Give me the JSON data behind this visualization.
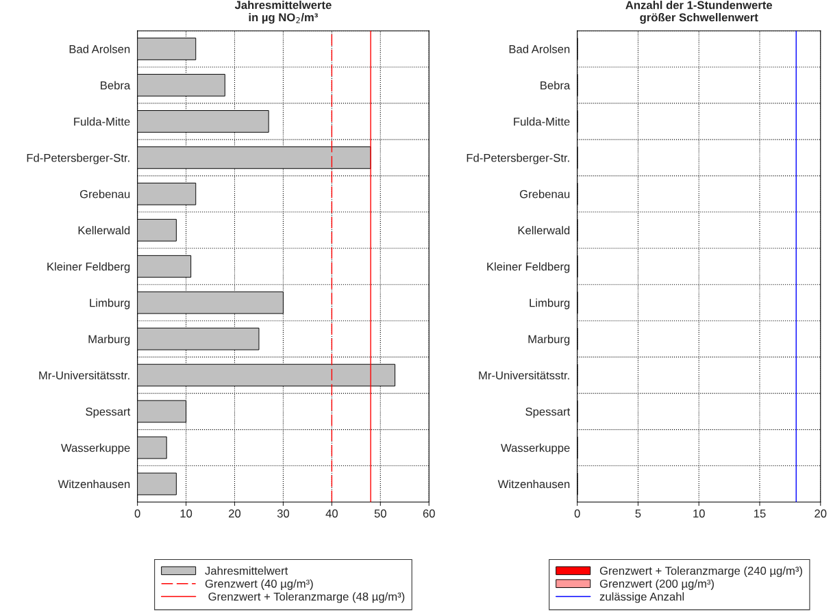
{
  "chart_data": [
    {
      "type": "bar",
      "orientation": "horizontal",
      "title": "Jahresmittelwerte\nin µg NO$_{2}$/m³",
      "categories": [
        "Bad Arolsen",
        "Bebra",
        "Fulda-Mitte",
        "Fd-Petersberger-Str.",
        "Grebenau",
        "Kellerwald",
        "Kleiner Feldberg",
        "Limburg",
        "Marburg",
        "Mr-Universitätsstr.",
        "Spessart",
        "Wasserkuppe",
        "Witzenhausen"
      ],
      "series": [
        {
          "name": "Jahresmittelwert",
          "color": "#c0c0c0",
          "values": [
            12,
            18,
            27,
            48,
            12,
            8,
            11,
            30,
            25,
            53,
            10,
            6,
            8
          ]
        }
      ],
      "ref_lines": [
        {
          "axis": "x",
          "value": 40,
          "label": "Grenzwert (40 µg/m³)",
          "color": "#ff0000",
          "line_style": "dashed"
        },
        {
          "axis": "x",
          "value": 48,
          "label": " Grenzwert + Toleranzmarge (48 µg/m³)",
          "color": "#ff0000",
          "line_style": "solid"
        }
      ],
      "xlim": [
        0,
        60
      ],
      "xticks": [
        0,
        10,
        20,
        30,
        40,
        50,
        60
      ],
      "grid": true,
      "legend": "bottom"
    },
    {
      "type": "bar",
      "orientation": "horizontal",
      "title": "Anzahl der 1-Stundenwerte\ngrößer Schwellenwert",
      "categories": [
        "Bad Arolsen",
        "Bebra",
        "Fulda-Mitte",
        "Fd-Petersberger-Str.",
        "Grebenau",
        "Kellerwald",
        "Kleiner Feldberg",
        "Limburg",
        "Marburg",
        "Mr-Universitätsstr.",
        "Spessart",
        "Wasserkuppe",
        "Witzenhausen"
      ],
      "series": [
        {
          "name": "Grenzwert + Toleranzmarge (240 µg/m³)",
          "color": "#ff0000",
          "values": [
            0,
            0,
            0,
            0,
            0,
            0,
            0,
            0,
            0,
            0,
            0,
            0,
            0
          ]
        },
        {
          "name": "Grenzwert (200 µg/m³)",
          "color": "#ff9999",
          "values": [
            0,
            0,
            0,
            0,
            0,
            0,
            0,
            0,
            0,
            0,
            0,
            0,
            0
          ]
        }
      ],
      "ref_lines": [
        {
          "axis": "x",
          "value": 18,
          "label": "zulässige Anzahl",
          "color": "#0000ff",
          "line_style": "solid"
        }
      ],
      "xlim": [
        0,
        20
      ],
      "xticks": [
        0,
        5,
        10,
        15,
        20
      ],
      "grid": true,
      "legend": "bottom"
    }
  ]
}
